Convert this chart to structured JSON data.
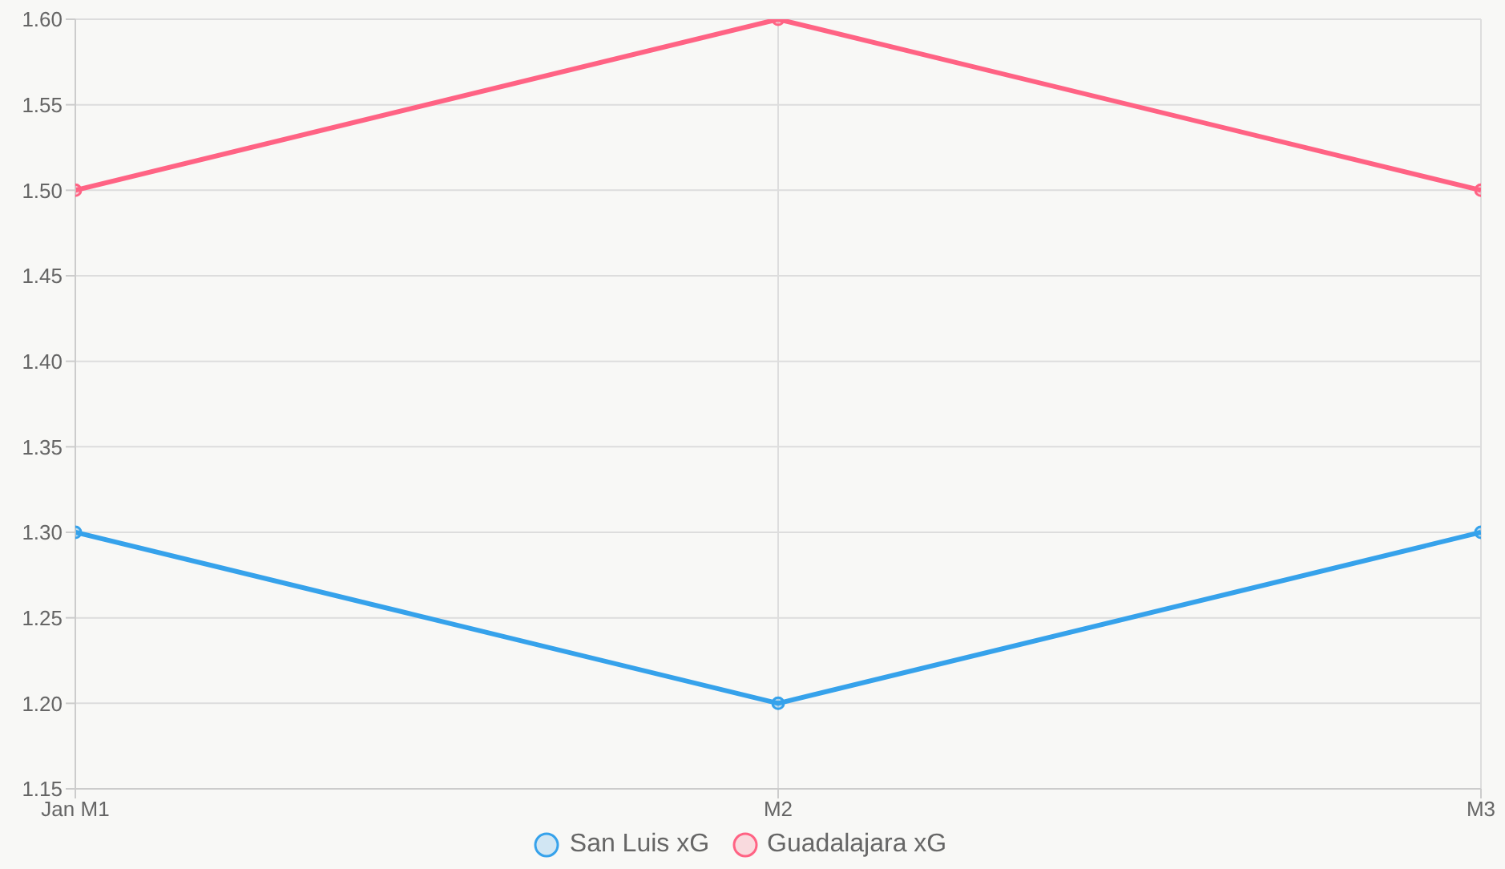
{
  "chart_data": {
    "type": "line",
    "categories": [
      "Jan M1",
      "M2",
      "M3"
    ],
    "series": [
      {
        "name": "San Luis xG",
        "color": "#36a2eb",
        "values": [
          1.3,
          1.2,
          1.3
        ]
      },
      {
        "name": "Guadalajara xG",
        "color": "#ff6384",
        "values": [
          1.5,
          1.6,
          1.5
        ]
      }
    ],
    "ylim": [
      1.15,
      1.6
    ],
    "yticks": [
      1.15,
      {
        "value": 1.2,
        "label": "1.20"
      },
      1.25,
      {
        "value": 1.3,
        "label": "1.30"
      },
      1.35,
      {
        "value": 1.4,
        "label": "1.40"
      },
      1.45,
      {
        "value": 1.5,
        "label": "1.50"
      },
      1.55,
      {
        "value": 1.6,
        "label": "1.60"
      }
    ],
    "grid": true,
    "legend": "bottom",
    "marker": "circle",
    "line_style": "solid"
  }
}
